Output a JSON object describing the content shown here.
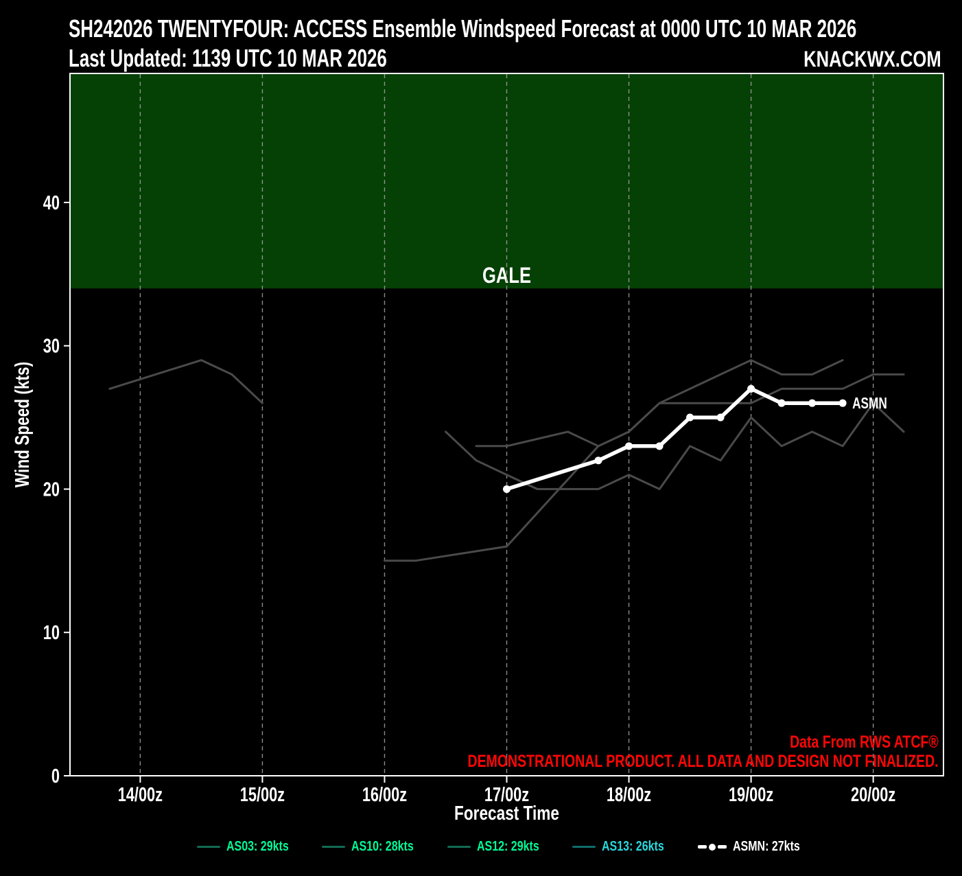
{
  "header": {
    "title_line1": "SH242026 TWENTYFOUR: ACCESS Ensemble Windspeed Forecast at 0000 UTC 10 MAR 2026",
    "title_line2": "Last Updated: 1139 UTC 10 MAR 2026",
    "brand": "KNACKWX.COM"
  },
  "watermark": {
    "line1": "Data From RWS ATCF®",
    "line2": "DEMONSTRATIONAL PRODUCT. ALL DATA AND DESIGN NOT FINALIZED."
  },
  "chart_data": {
    "type": "line",
    "title": "SH242026 TWENTYFOUR: ACCESS Ensemble Windspeed Forecast at 0000 UTC 10 MAR 2026",
    "subtitle": "Last Updated: 1139 UTC 10 MAR 2026",
    "xlabel": "Forecast Time",
    "ylabel": "Wind Speed (kts)",
    "time_reference": "hours after 14/00z",
    "x_axis": {
      "tick_hours": [
        0,
        24,
        48,
        72,
        96,
        120,
        144
      ],
      "tick_labels": [
        "14/00z",
        "15/00z",
        "16/00z",
        "17/00z",
        "18/00z",
        "19/00z",
        "20/00z"
      ],
      "range_hours": [
        -13.8,
        157.8
      ],
      "gridlines": "dashed-vertical"
    },
    "y_axis": {
      "ticks": [
        0,
        10,
        20,
        30,
        40
      ],
      "range": [
        0,
        49
      ]
    },
    "gale_zone": {
      "label": "GALE",
      "from_kts": 34,
      "to_kts": 49,
      "fill": "#054005",
      "label_color": "#1fa81f"
    },
    "legend_position": "bottom-center",
    "colors": {
      "background": "#000000",
      "axis_text": "#ffffff",
      "gridline": "#9b9b9b",
      "ensemble_line": "#4a4a4a",
      "mean_line": "#ffffff",
      "watermark_red": "#ff0606"
    },
    "series": [
      {
        "name": "AS03",
        "legend_label": "AS03: 29kts",
        "peak_kts": 29,
        "line_color": "#4a4a4a",
        "legend_text_color": "#00fa96",
        "legend_swatch_color": "#136b52",
        "marker": false,
        "points": [
          [
            48,
            15
          ],
          [
            54,
            15
          ],
          [
            72,
            16
          ],
          [
            90,
            23
          ],
          [
            96,
            24
          ],
          [
            102,
            26
          ],
          [
            114,
            28
          ],
          [
            120,
            29
          ],
          [
            126,
            28
          ],
          [
            132,
            28
          ],
          [
            138,
            29
          ]
        ]
      },
      {
        "name": "AS10",
        "legend_label": "AS10: 28kts",
        "peak_kts": 28,
        "line_color": "#4a4a4a",
        "legend_text_color": "#00fa96",
        "legend_swatch_color": "#136b52",
        "marker": false,
        "points": [
          [
            66,
            23
          ],
          [
            72,
            23
          ],
          [
            84,
            24
          ],
          [
            90,
            23
          ],
          [
            96,
            24
          ],
          [
            102,
            26
          ],
          [
            108,
            26
          ],
          [
            114,
            26
          ],
          [
            120,
            26
          ],
          [
            126,
            27
          ],
          [
            132,
            27
          ],
          [
            138,
            27
          ],
          [
            144,
            28
          ],
          [
            150,
            28
          ]
        ]
      },
      {
        "name": "AS12",
        "legend_label": "AS12: 29kts",
        "peak_kts": 29,
        "line_color": "#4a4a4a",
        "legend_text_color": "#00fa96",
        "legend_swatch_color": "#136b52",
        "marker": false,
        "points": [
          [
            -6,
            27
          ],
          [
            12,
            29
          ],
          [
            18,
            28
          ],
          [
            24,
            26
          ]
        ]
      },
      {
        "name": "AS13",
        "legend_label": "AS13: 26kts",
        "peak_kts": 26,
        "line_color": "#4a4a4a",
        "legend_text_color": "#29d8dc",
        "legend_swatch_color": "#116b6b",
        "marker": false,
        "points": [
          [
            60,
            24
          ],
          [
            66,
            22
          ],
          [
            72,
            21
          ],
          [
            78,
            20
          ],
          [
            84,
            20
          ],
          [
            90,
            20
          ],
          [
            96,
            21
          ],
          [
            102,
            20
          ],
          [
            108,
            23
          ],
          [
            114,
            22
          ],
          [
            120,
            25
          ],
          [
            126,
            23
          ],
          [
            132,
            24
          ],
          [
            138,
            23
          ],
          [
            144,
            26
          ],
          [
            150,
            24
          ]
        ]
      },
      {
        "name": "ASMN",
        "legend_label": "ASMN: 27kts",
        "peak_kts": 27,
        "line_color": "#ffffff",
        "legend_text_color": "#ffffff",
        "legend_swatch_color": "#ffffff",
        "marker": true,
        "line_label": "ASMN",
        "points": [
          [
            72,
            20
          ],
          [
            90,
            22
          ],
          [
            96,
            23
          ],
          [
            102,
            23
          ],
          [
            108,
            25
          ],
          [
            114,
            25
          ],
          [
            120,
            27
          ],
          [
            126,
            26
          ],
          [
            132,
            26
          ],
          [
            138,
            26
          ]
        ]
      }
    ]
  }
}
